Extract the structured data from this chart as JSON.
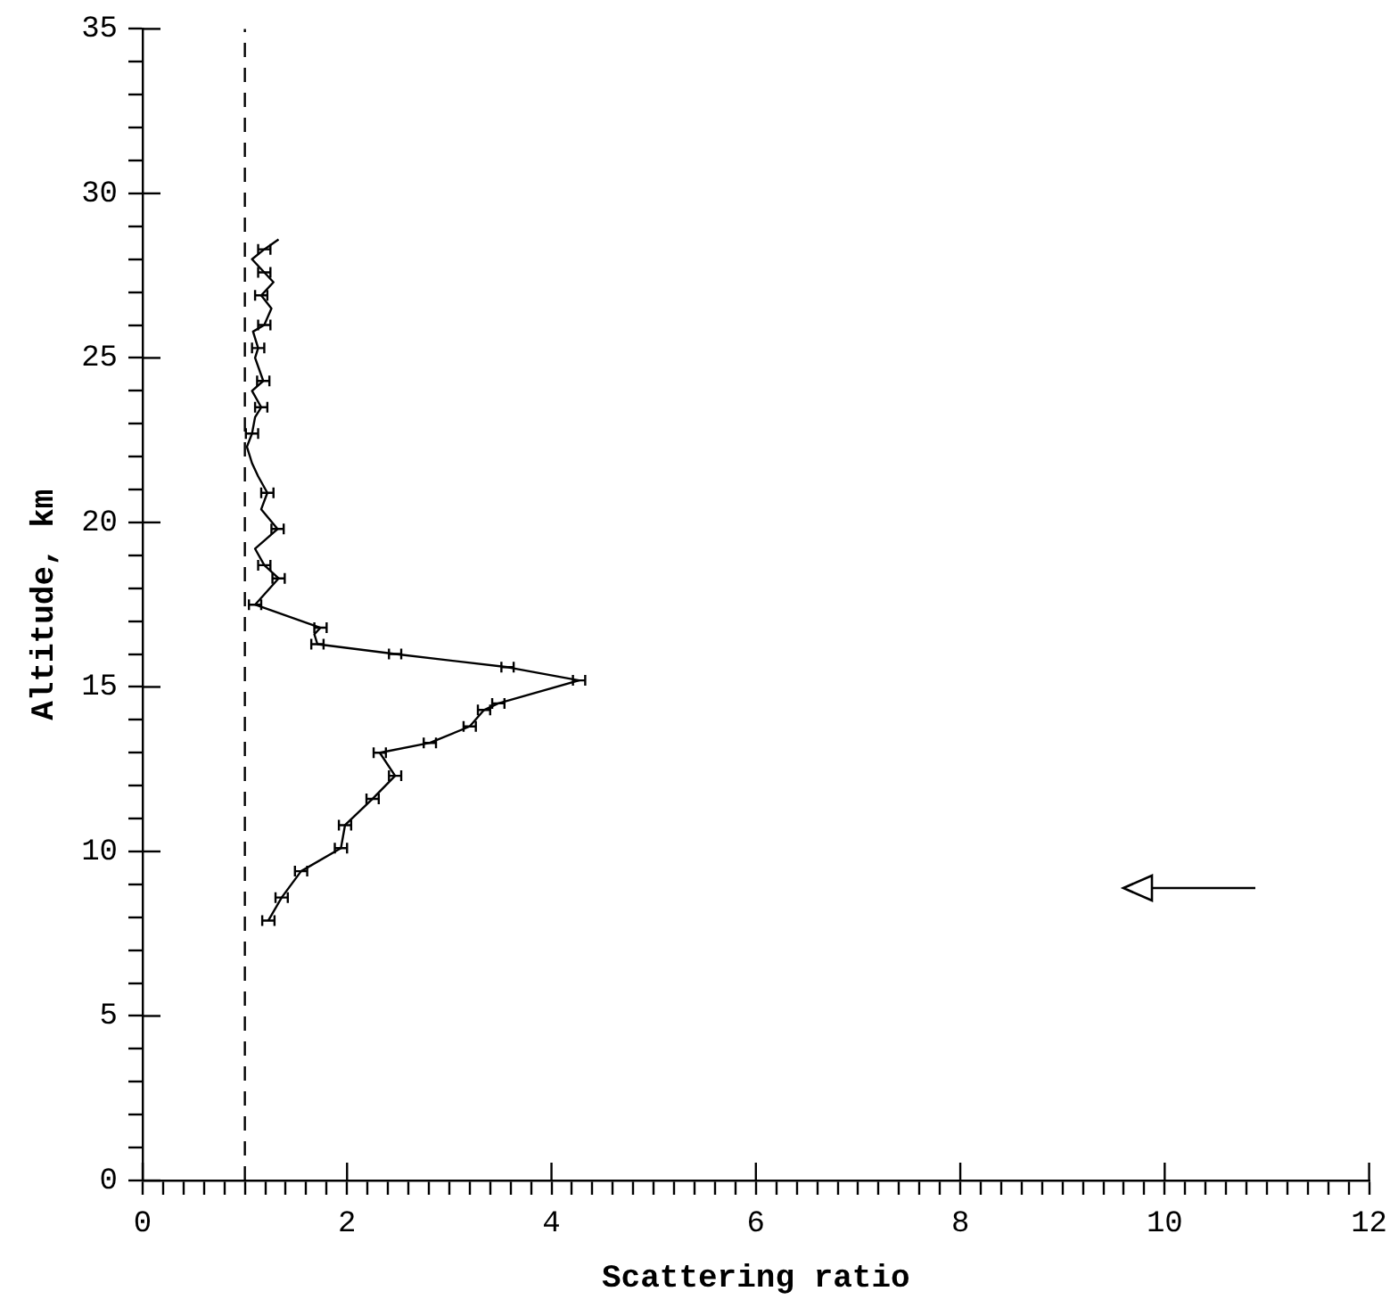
{
  "chart_data": {
    "type": "line",
    "xlabel": "Scattering ratio",
    "ylabel": "Altitude, km",
    "xlim": [
      0,
      12
    ],
    "ylim": [
      0,
      35
    ],
    "xticks": [
      0,
      {
        "value": 0.2,
        "label": null
      },
      {
        "value": 0.4,
        "label": null
      },
      {
        "value": 0.6,
        "label": null
      },
      {
        "value": 0.8,
        "label": null
      },
      {
        "value": 1,
        "label": null
      },
      {
        "value": 1.2,
        "label": null
      },
      {
        "value": 1.4,
        "label": null
      },
      {
        "value": 1.6,
        "label": null
      },
      {
        "value": 1.8,
        "label": null
      },
      2,
      {
        "value": 2.2,
        "label": null
      },
      {
        "value": 2.4,
        "label": null
      },
      {
        "value": 2.6,
        "label": null
      },
      {
        "value": 2.8,
        "label": null
      },
      {
        "value": 3,
        "label": null
      },
      {
        "value": 3.2,
        "label": null
      },
      {
        "value": 3.4,
        "label": null
      },
      {
        "value": 3.6,
        "label": null
      },
      {
        "value": 3.8,
        "label": null
      },
      4,
      {
        "value": 4.2,
        "label": null
      },
      {
        "value": 4.4,
        "label": null
      },
      {
        "value": 4.6,
        "label": null
      },
      {
        "value": 4.8,
        "label": null
      },
      {
        "value": 5,
        "label": null
      },
      {
        "value": 5.2,
        "label": null
      },
      {
        "value": 5.4,
        "label": null
      },
      {
        "value": 5.6,
        "label": null
      },
      {
        "value": 5.8,
        "label": null
      },
      6,
      {
        "value": 6.2,
        "label": null
      },
      {
        "value": 6.4,
        "label": null
      },
      {
        "value": 6.6,
        "label": null
      },
      {
        "value": 6.8,
        "label": null
      },
      {
        "value": 7,
        "label": null
      },
      {
        "value": 7.2,
        "label": null
      },
      {
        "value": 7.4,
        "label": null
      },
      {
        "value": 7.6,
        "label": null
      },
      {
        "value": 7.8,
        "label": null
      },
      8,
      {
        "value": 8.2,
        "label": null
      },
      {
        "value": 8.4,
        "label": null
      },
      {
        "value": 8.6,
        "label": null
      },
      {
        "value": 8.8,
        "label": null
      },
      {
        "value": 9,
        "label": null
      },
      {
        "value": 9.2,
        "label": null
      },
      {
        "value": 9.4,
        "label": null
      },
      {
        "value": 9.6,
        "label": null
      },
      {
        "value": 9.8,
        "label": null
      },
      10,
      {
        "value": 10.2,
        "label": null
      },
      {
        "value": 10.4,
        "label": null
      },
      {
        "value": 10.6,
        "label": null
      },
      {
        "value": 10.8,
        "label": null
      },
      {
        "value": 11,
        "label": null
      },
      {
        "value": 11.2,
        "label": null
      },
      {
        "value": 11.4,
        "label": null
      },
      {
        "value": 11.6,
        "label": null
      },
      {
        "value": 11.8,
        "label": null
      },
      12
    ],
    "yticks": [
      0,
      {
        "value": 1,
        "label": null
      },
      {
        "value": 2,
        "label": null
      },
      {
        "value": 3,
        "label": null
      },
      {
        "value": 4,
        "label": null
      },
      5,
      {
        "value": 6,
        "label": null
      },
      {
        "value": 7,
        "label": null
      },
      {
        "value": 8,
        "label": null
      },
      {
        "value": 9,
        "label": null
      },
      10,
      {
        "value": 11,
        "label": null
      },
      {
        "value": 12,
        "label": null
      },
      {
        "value": 13,
        "label": null
      },
      {
        "value": 14,
        "label": null
      },
      15,
      {
        "value": 16,
        "label": null
      },
      {
        "value": 17,
        "label": null
      },
      {
        "value": 18,
        "label": null
      },
      {
        "value": 19,
        "label": null
      },
      20,
      {
        "value": 21,
        "label": null
      },
      {
        "value": 22,
        "label": null
      },
      {
        "value": 23,
        "label": null
      },
      {
        "value": 24,
        "label": null
      },
      25,
      {
        "value": 26,
        "label": null
      },
      {
        "value": 27,
        "label": null
      },
      {
        "value": 28,
        "label": null
      },
      {
        "value": 29,
        "label": null
      },
      30,
      {
        "value": 31,
        "label": null
      },
      {
        "value": 32,
        "label": null
      },
      {
        "value": 33,
        "label": null
      },
      {
        "value": 34,
        "label": null
      },
      35
    ],
    "grid": false,
    "legend": false,
    "series": [
      {
        "color": "#000000",
        "x": [
          1.23,
          1.36,
          1.55,
          1.94,
          1.98,
          2.25,
          2.47,
          2.32,
          2.81,
          3.2,
          3.34,
          3.48,
          4.27,
          3.57,
          2.47,
          1.71,
          1.68,
          1.74,
          1.1,
          1.33,
          1.19,
          1.1,
          1.32,
          1.16,
          1.22,
          1.13,
          1.07,
          1.02,
          1.07,
          1.1,
          1.16,
          1.07,
          1.18,
          1.1,
          1.13,
          1.08,
          1.19,
          1.26,
          1.16,
          1.28,
          1.19,
          1.07,
          1.19,
          1.33
        ],
        "values": [
          7.9,
          8.6,
          9.4,
          10.1,
          10.8,
          11.6,
          12.3,
          13,
          13.3,
          13.8,
          14.3,
          14.5,
          15.2,
          15.6,
          16,
          16.3,
          16.6,
          16.8,
          17.5,
          18.3,
          18.7,
          19.2,
          19.8,
          20.4,
          20.9,
          21.4,
          21.8,
          22.3,
          22.7,
          23.2,
          23.5,
          24,
          24.3,
          25,
          25.3,
          25.8,
          26,
          26.5,
          26.9,
          27.3,
          27.6,
          28,
          28.3,
          28.6
        ],
        "xerrors": [
          0.06,
          0.06,
          0.06,
          0.06,
          0.06,
          0.06,
          0.06,
          0.06,
          0.06,
          0.06,
          0.06,
          0.06,
          0.06,
          0.06,
          0.06,
          0.06,
          null,
          0.06,
          0.06,
          0.06,
          0.06,
          null,
          0.06,
          null,
          0.06,
          null,
          null,
          null,
          0.06,
          null,
          0.06,
          null,
          0.06,
          null,
          0.06,
          null,
          0.06,
          null,
          0.06,
          null,
          0.06,
          null,
          0.06,
          null
        ]
      }
    ],
    "ref_lines": [
      {
        "axis": "x",
        "value": 1,
        "line_style": "dashed",
        "color": "#000000"
      }
    ]
  }
}
